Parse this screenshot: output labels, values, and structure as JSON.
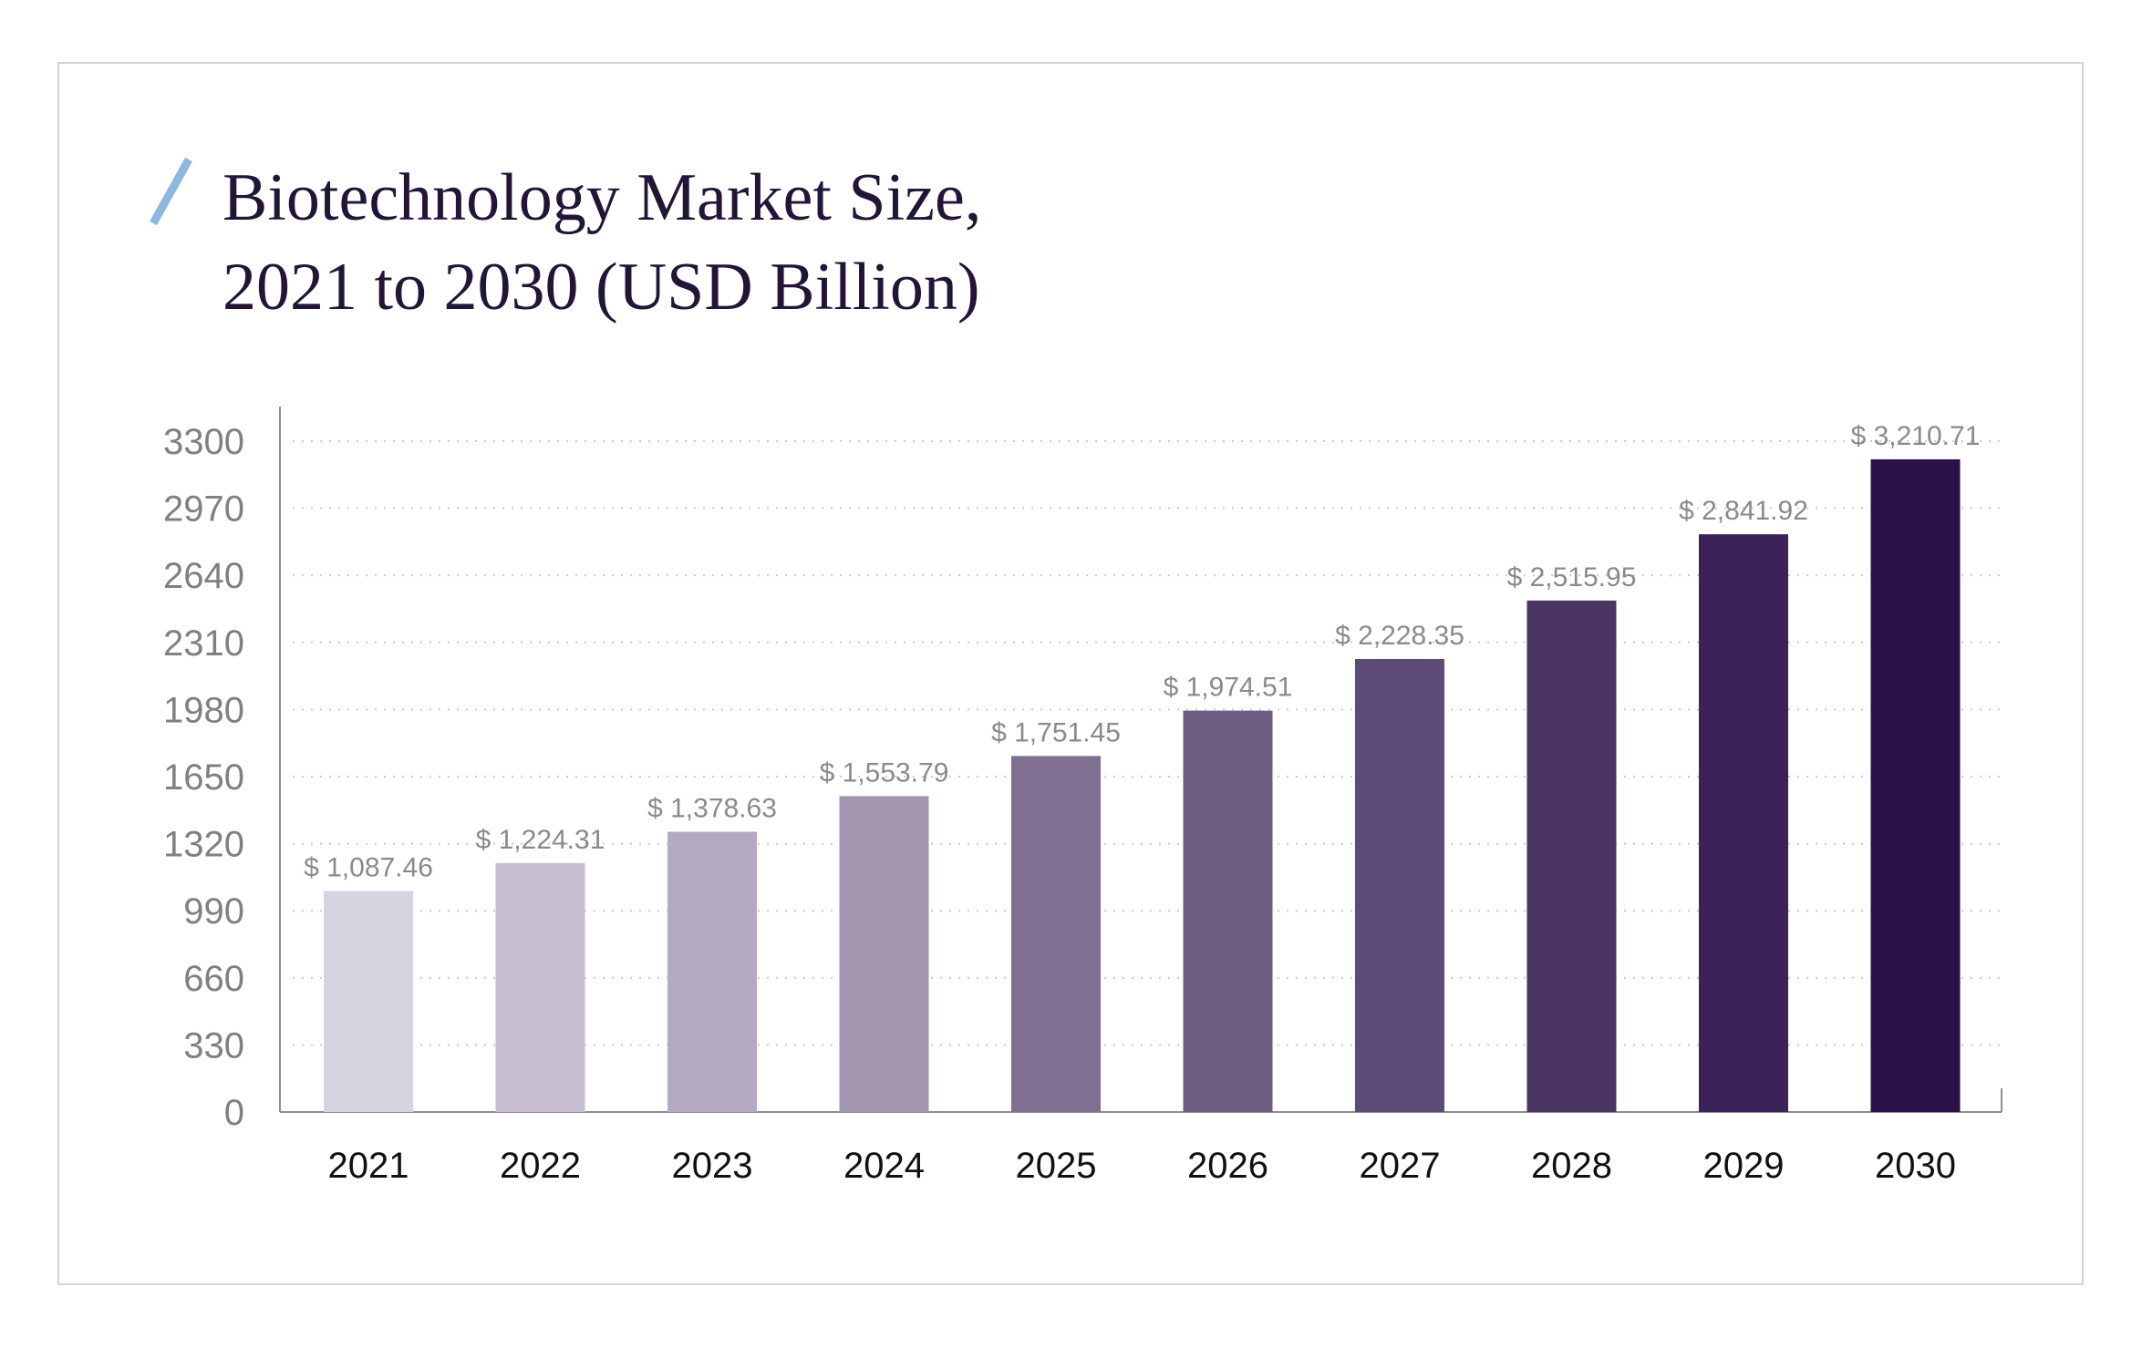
{
  "chart_data": {
    "type": "bar",
    "title": "Biotechnology Market Size,\n2021 to 2030 (USD Billion)",
    "title_lines": [
      "Biotechnology Market Size,",
      "2021 to 2030 (USD Billion)"
    ],
    "xlabel": "",
    "ylabel": "",
    "categories": [
      "2021",
      "2022",
      "2023",
      "2024",
      "2025",
      "2026",
      "2027",
      "2028",
      "2029",
      "2030"
    ],
    "values": [
      1087.46,
      1224.31,
      1378.63,
      1553.79,
      1751.45,
      1974.51,
      2228.35,
      2515.95,
      2841.92,
      3210.71
    ],
    "data_labels": [
      "$ 1,087.46",
      "$ 1,224.31",
      "$ 1,378.63",
      "$ 1,553.79",
      "$ 1,751.45",
      "$ 1,974.51",
      "$ 2,228.35",
      "$ 2,515.95",
      "$ 2,841.92",
      "$ 3,210.71"
    ],
    "yticks": [
      0,
      330,
      660,
      990,
      1320,
      1650,
      1980,
      2310,
      2640,
      2970,
      3300
    ],
    "ylim": [
      0,
      3300
    ],
    "grid": true,
    "legend": "none",
    "colors": [
      "#d8d3e0",
      "#c6bdd1",
      "#b4a9c2",
      "#a396b1",
      "#7f7092",
      "#6e5e84",
      "#5c4a78",
      "#4b3565",
      "#3b2359",
      "#2a1147"
    ]
  },
  "colors": {
    "title": "#231537",
    "accent_slash": "#8db7e0",
    "axis": "#8e8e8e",
    "grid": "#c9c9c9",
    "card_border": "#d4d4d8"
  }
}
